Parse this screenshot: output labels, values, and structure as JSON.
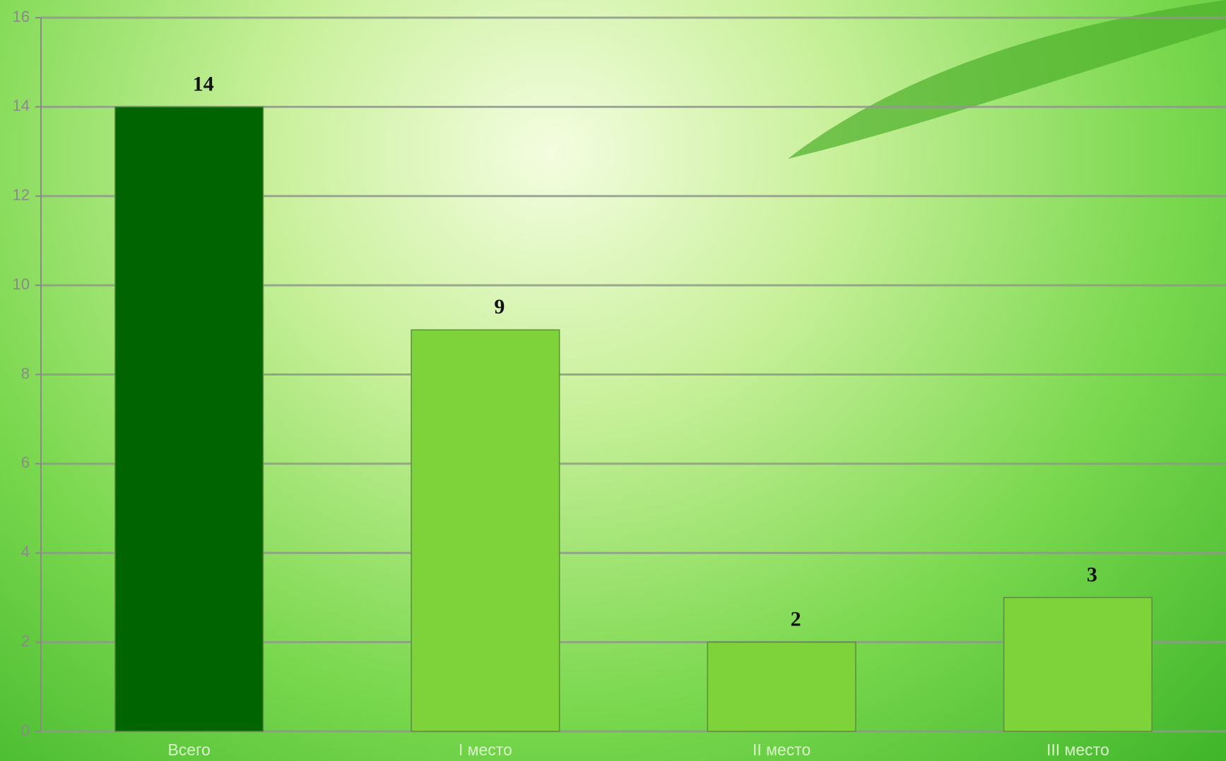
{
  "chart_data": {
    "type": "bar",
    "categories": [
      "Всего",
      "I место",
      "II место",
      "III место"
    ],
    "values": [
      14,
      9,
      2,
      3
    ],
    "colors": [
      "#006400",
      "#7ed23a",
      "#7ed23a",
      "#7ed23a"
    ],
    "ylim": [
      0,
      16
    ],
    "yticks": [
      0,
      2,
      4,
      6,
      8,
      10,
      12,
      14,
      16
    ],
    "grid": true
  }
}
